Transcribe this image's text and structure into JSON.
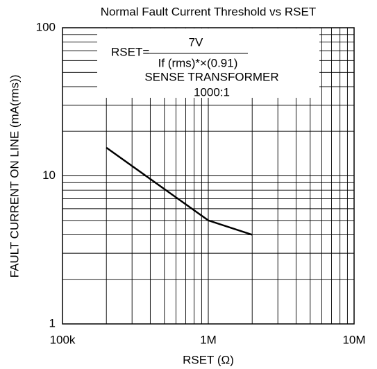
{
  "chart_data": {
    "type": "line",
    "title": "Normal Fault Current Threshold vs RSET",
    "x_label": "RSET (Ω)",
    "y_label": "FAULT CURRENT ON LINE (mA(rms))",
    "x": [
      200000,
      1000000,
      2000000
    ],
    "values": [
      15.5,
      5,
      4
    ],
    "color": "#000000",
    "log_x": true,
    "log_y": true,
    "grid": true,
    "xlim": [
      100000,
      10000000
    ],
    "ylim": [
      1,
      100
    ],
    "xticks": [
      {
        "value": 100000,
        "label": "100k"
      },
      {
        "value": 1000000,
        "label": "1M"
      },
      {
        "value": 10000000,
        "label": "10M"
      }
    ],
    "yticks": [
      1,
      10,
      100
    ],
    "xminor": [
      200000,
      300000,
      400000,
      500000,
      600000,
      700000,
      800000,
      900000,
      2000000,
      3000000,
      4000000,
      5000000,
      6000000,
      7000000,
      8000000,
      9000000
    ],
    "yminor": [
      2,
      3,
      4,
      5,
      6,
      7,
      8,
      9,
      20,
      30,
      40,
      50,
      60,
      70,
      80,
      90
    ],
    "annotations": {
      "formula_lhs": "RSET=",
      "numerator": "7V",
      "denominator": "If (rms)*×(0.91)",
      "line1": "SENSE TRANSFORMER",
      "line2": "1000:1"
    }
  }
}
